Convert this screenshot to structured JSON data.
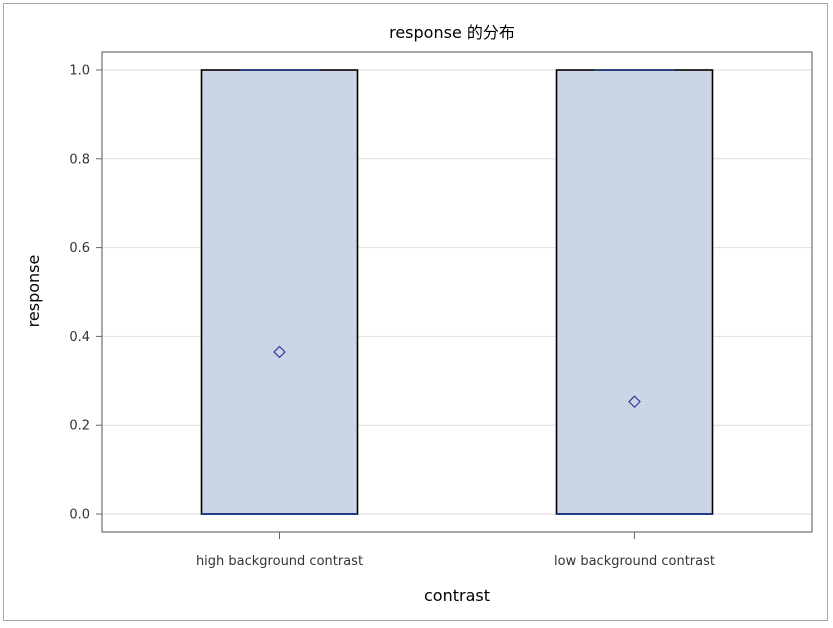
{
  "chart_data": {
    "type": "box",
    "title": "response 的分布",
    "xlabel": "contrast",
    "ylabel": "response",
    "ylim": [
      0,
      1
    ],
    "yticks": [
      "0.0",
      "0.2",
      "0.4",
      "0.6",
      "0.8",
      "1.0"
    ],
    "ytick_values": [
      0,
      0.2,
      0.4,
      0.6,
      0.8,
      1.0
    ],
    "grid": true,
    "categories": [
      "high background contrast",
      "low background contrast"
    ],
    "boxes": [
      {
        "category": "high background contrast",
        "min": 0,
        "q1": 0,
        "median": 0,
        "q3": 1,
        "max": 1,
        "mean": 0.365
      },
      {
        "category": "low background contrast",
        "min": 0,
        "q1": 0,
        "median": 0,
        "q3": 1,
        "max": 1,
        "mean": 0.253
      }
    ],
    "colors": {
      "box_fill": "#cbd5e5",
      "box_edge": "#000000",
      "mean_marker": "#2b3f9e",
      "median_line": "#1f3d8a",
      "grid": "#dedede",
      "frame": "#8c8c8c"
    }
  }
}
